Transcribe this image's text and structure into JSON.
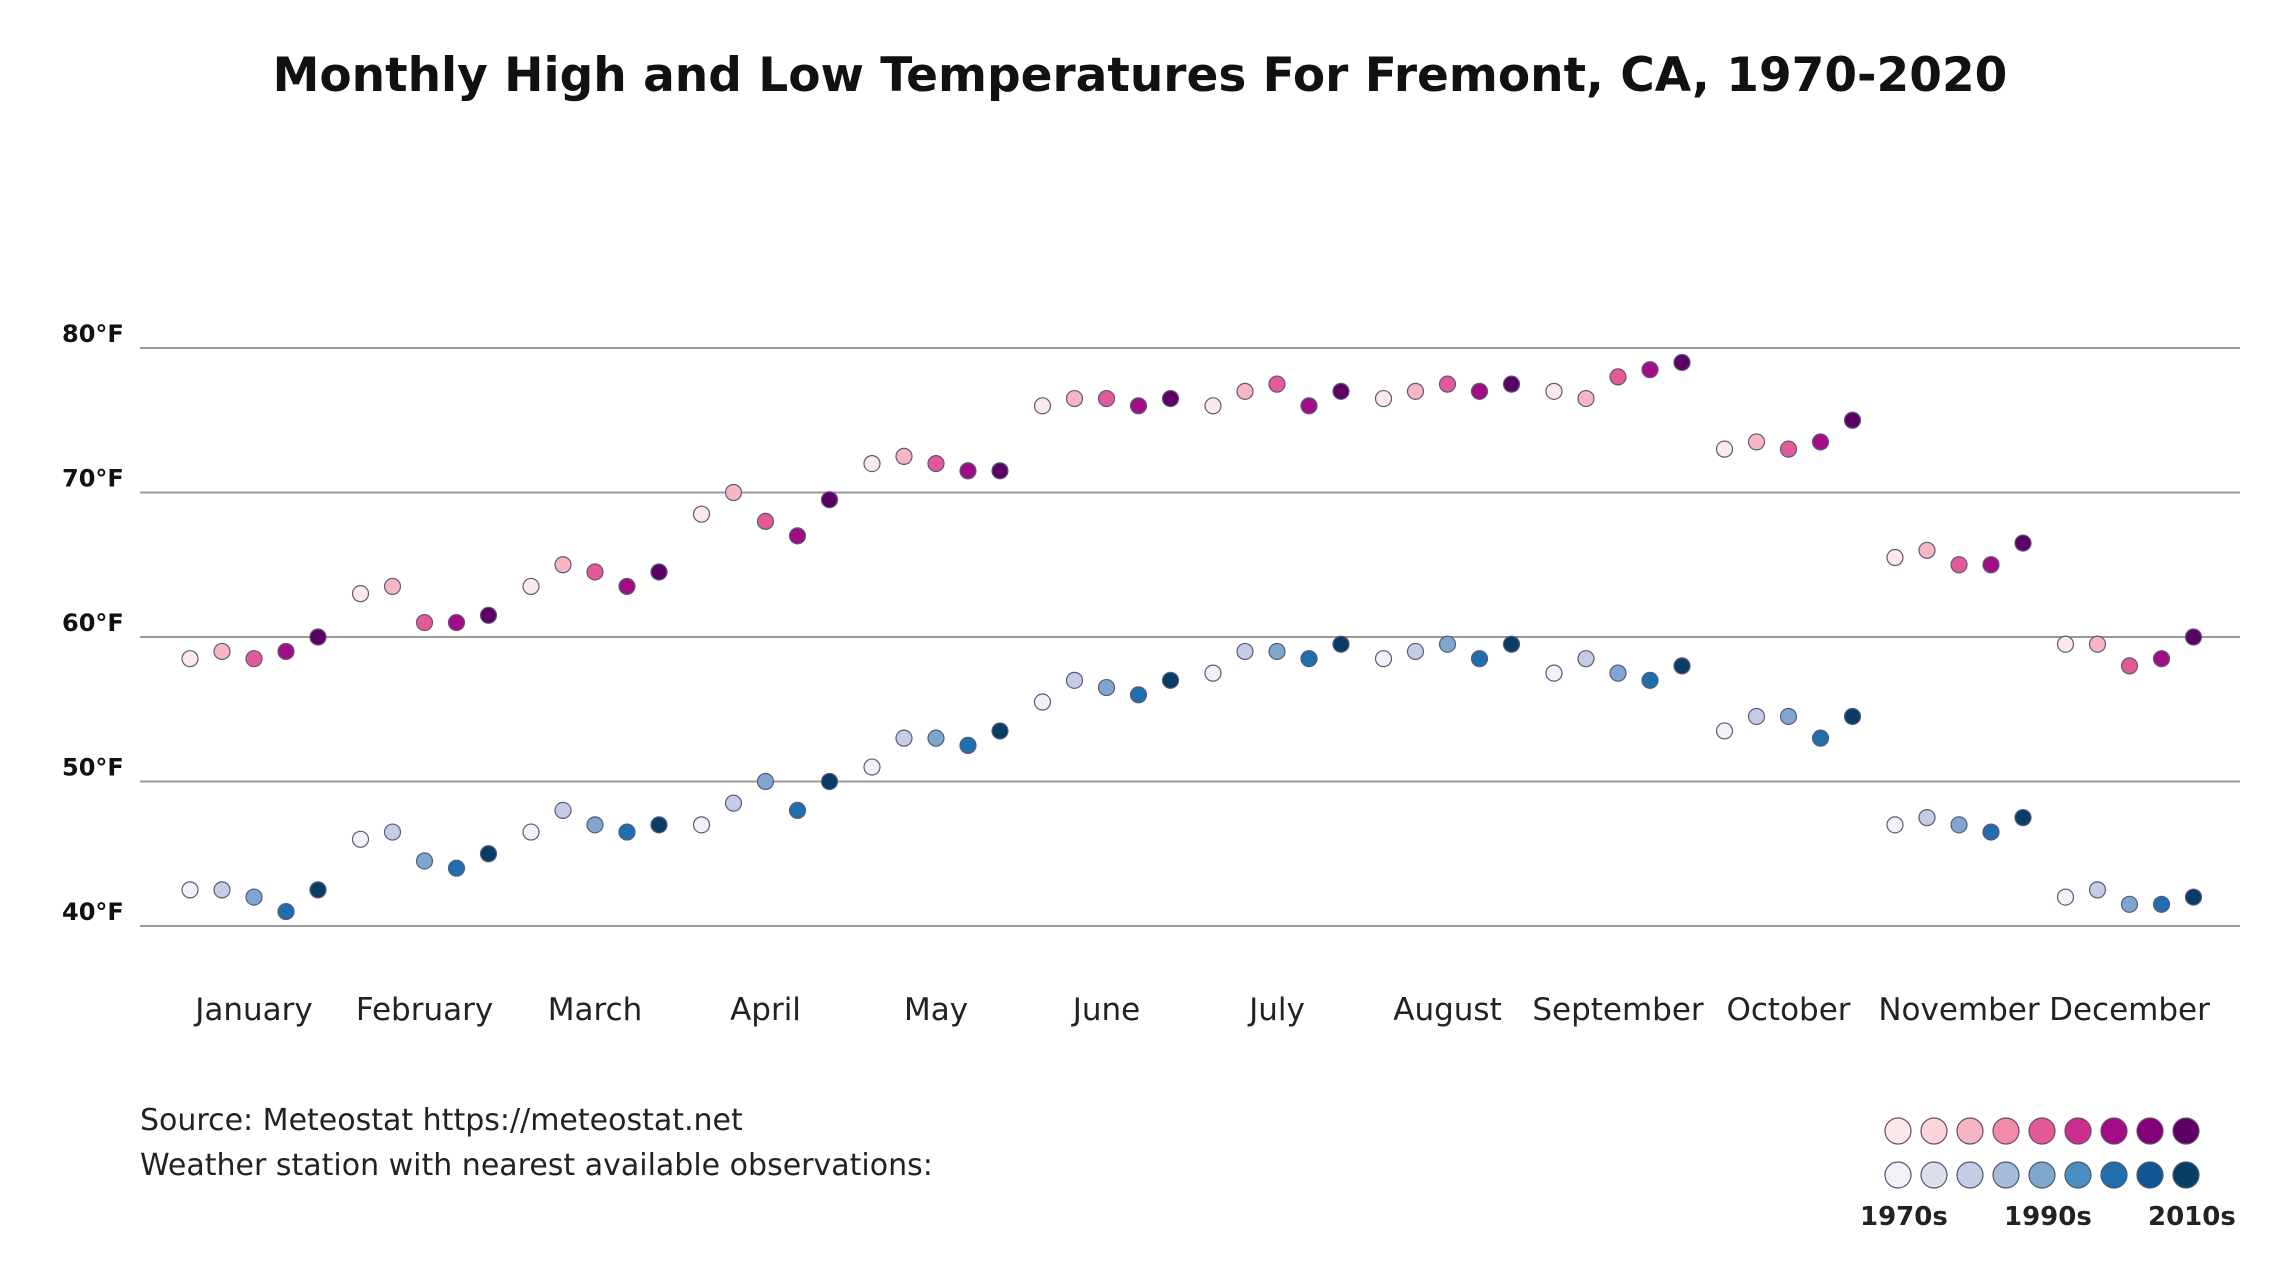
{
  "chart_data": {
    "type": "scatter",
    "title": "Monthly High and Low Temperatures For Fremont, CA, 1970-2020",
    "y_ticks": [
      "80°F",
      "70°F",
      "60°F",
      "50°F",
      "40°F"
    ],
    "y_tick_values": [
      80,
      70,
      60,
      50,
      40
    ],
    "ylim": [
      36,
      85
    ],
    "months": [
      "January",
      "February",
      "March",
      "April",
      "May",
      "June",
      "July",
      "August",
      "September",
      "October",
      "November",
      "December"
    ],
    "grid": "horizontal",
    "series": [
      {
        "kind": "high",
        "decade": "1970s",
        "values": [
          58.5,
          63.0,
          63.5,
          68.5,
          72.0,
          76.0,
          76.0,
          76.5,
          77.0,
          73.0,
          65.5,
          59.5
        ]
      },
      {
        "kind": "high",
        "decade": "1980s",
        "values": [
          59.0,
          63.5,
          65.0,
          70.0,
          72.5,
          76.5,
          77.0,
          77.0,
          76.5,
          73.5,
          66.0,
          59.5
        ]
      },
      {
        "kind": "high",
        "decade": "1990s",
        "values": [
          58.5,
          61.0,
          64.5,
          68.0,
          72.0,
          76.5,
          77.5,
          77.5,
          78.0,
          73.0,
          65.0,
          58.0
        ]
      },
      {
        "kind": "high",
        "decade": "2000s",
        "values": [
          59.0,
          61.0,
          63.5,
          67.0,
          71.5,
          76.0,
          76.0,
          77.0,
          78.5,
          73.5,
          65.0,
          58.5
        ]
      },
      {
        "kind": "high",
        "decade": "2010s",
        "values": [
          60.0,
          61.5,
          64.5,
          69.5,
          71.5,
          76.5,
          77.0,
          77.5,
          79.0,
          75.0,
          66.5,
          60.0
        ]
      },
      {
        "kind": "low",
        "decade": "1970s",
        "values": [
          42.5,
          46.0,
          46.5,
          47.0,
          51.0,
          55.5,
          57.5,
          58.5,
          57.5,
          53.5,
          47.0,
          42.0
        ]
      },
      {
        "kind": "low",
        "decade": "1980s",
        "values": [
          42.5,
          46.5,
          48.0,
          48.5,
          53.0,
          57.0,
          59.0,
          59.0,
          58.5,
          54.5,
          47.5,
          42.5
        ]
      },
      {
        "kind": "low",
        "decade": "1990s",
        "values": [
          42.0,
          44.5,
          47.0,
          50.0,
          53.0,
          56.5,
          59.0,
          59.5,
          57.5,
          54.5,
          47.0,
          41.5
        ]
      },
      {
        "kind": "low",
        "decade": "2000s",
        "values": [
          41.0,
          44.0,
          46.5,
          48.0,
          52.5,
          56.0,
          58.5,
          58.5,
          57.0,
          53.0,
          46.5,
          41.5
        ]
      },
      {
        "kind": "low",
        "decade": "2010s",
        "values": [
          42.5,
          45.0,
          47.0,
          50.0,
          53.5,
          57.0,
          59.5,
          59.5,
          58.0,
          54.5,
          47.5,
          42.0
        ]
      }
    ],
    "legend": {
      "high_colors": [
        "#fde8ec",
        "#fbd3d9",
        "#f7b6c2",
        "#f08ba9",
        "#e45a98",
        "#cc2e8e",
        "#a40c85",
        "#820078",
        "#5c0066"
      ],
      "low_colors": [
        "#f1f1f8",
        "#dcdeee",
        "#c4cde5",
        "#a4bbdb",
        "#7fa6cf",
        "#4b8ec2",
        "#1f6fae",
        "#0f5792",
        "#083d66"
      ],
      "labels": [
        "1970s",
        "1990s",
        "2010s"
      ]
    }
  },
  "source": {
    "line1": "Source: Meteostat https://meteostat.net",
    "line2": "Weather station with nearest available observations:"
  }
}
